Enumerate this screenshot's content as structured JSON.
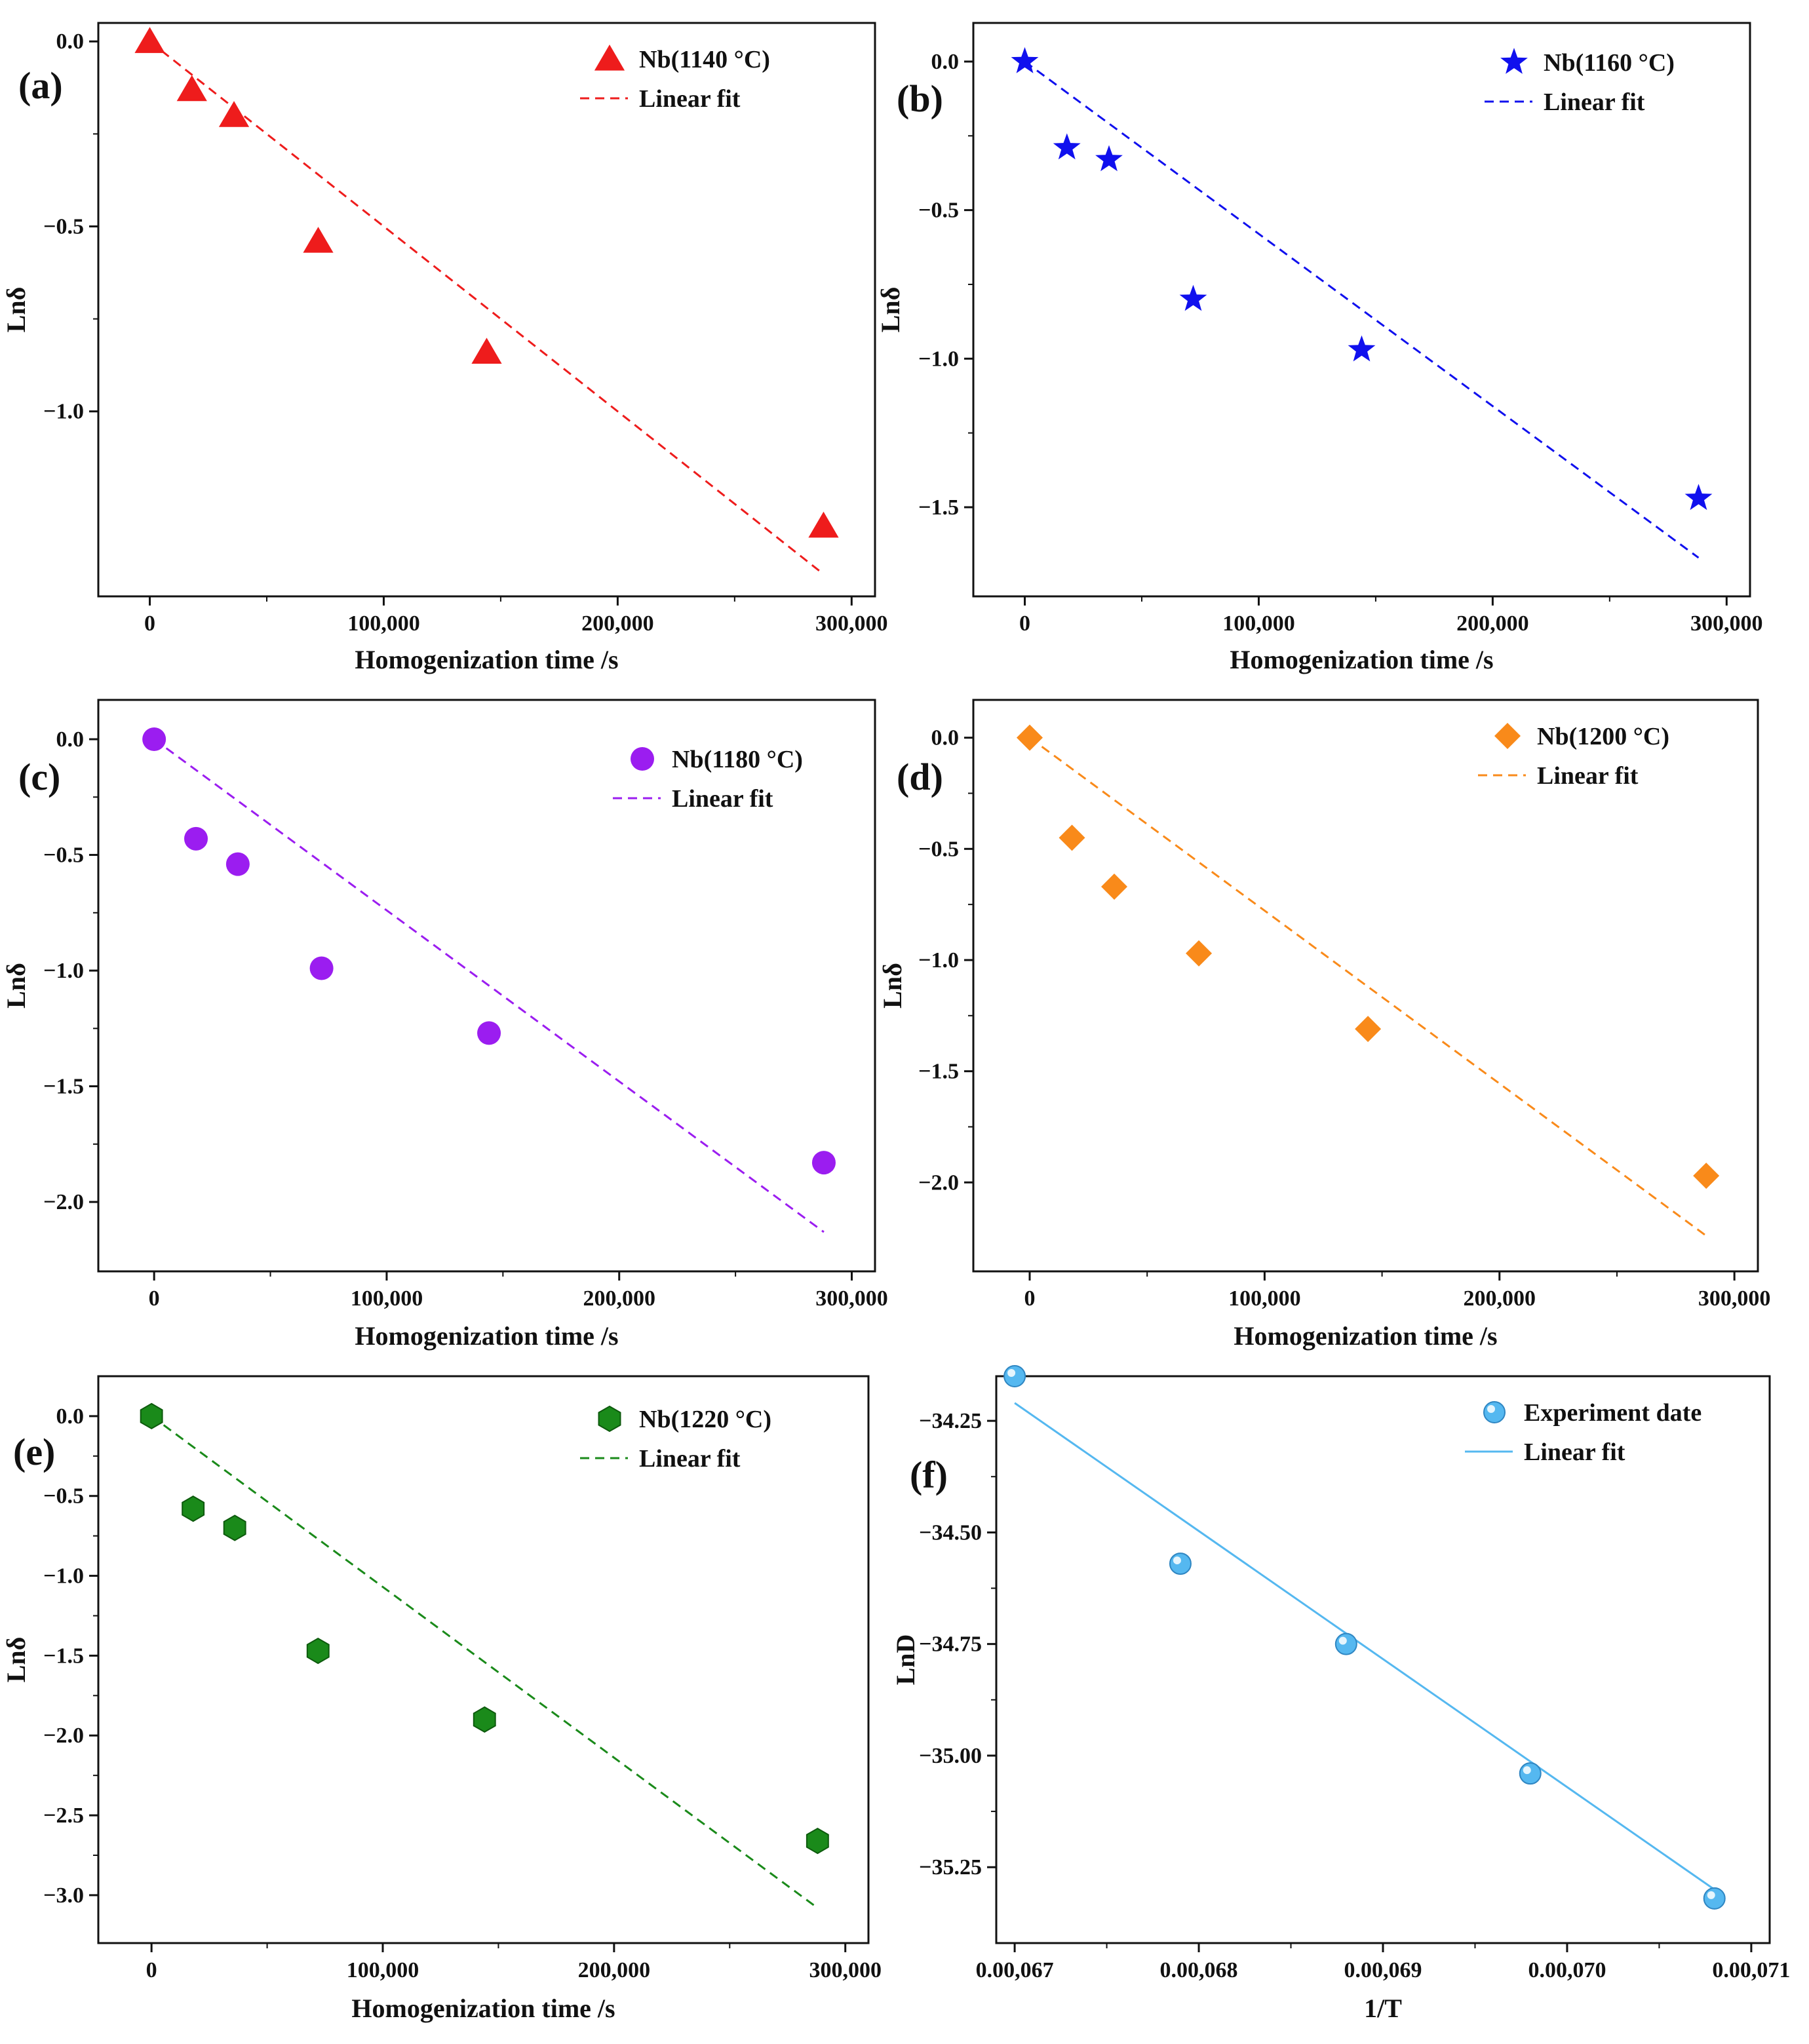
{
  "chart_data": [
    {
      "panel": "(a)",
      "type": "scatter",
      "marker": "triangle",
      "color": "#ee1c1c",
      "legend": [
        "Nb(1140 °C)",
        "Linear fit"
      ],
      "xlabel": "Homogenization time /s",
      "ylabel": "Lnδ",
      "xlim": [
        -22000,
        310000
      ],
      "ylim": [
        -1.5,
        0.05
      ],
      "xticks": [
        0,
        100000,
        200000,
        300000
      ],
      "xtick_labels": [
        "0",
        "100,000",
        "200,000",
        "300,000"
      ],
      "yticks": [
        0,
        -0.5,
        -1.0
      ],
      "ytick_labels": [
        "0.0",
        "-0.5",
        "-1.0"
      ],
      "points": [
        [
          0,
          0.0
        ],
        [
          18000,
          -0.13
        ],
        [
          36000,
          -0.2
        ],
        [
          72000,
          -0.54
        ],
        [
          144000,
          -0.84
        ],
        [
          288000,
          -1.31
        ]
      ],
      "fit": [
        [
          0,
          0.0
        ],
        [
          288000,
          -1.44
        ]
      ],
      "fit_style": "dashed"
    },
    {
      "panel": "(b)",
      "type": "scatter",
      "marker": "star",
      "color": "#1010ee",
      "legend": [
        "Nb(1160 °C)",
        "Linear fit"
      ],
      "xlabel": "Homogenization time /s",
      "ylabel": "Lnδ",
      "xlim": [
        -22000,
        310000
      ],
      "ylim": [
        -1.8,
        0.13
      ],
      "xticks": [
        0,
        100000,
        200000,
        300000
      ],
      "xtick_labels": [
        "0",
        "100,000",
        "200,000",
        "300,000"
      ],
      "yticks": [
        0,
        -0.5,
        -1.0,
        -1.5
      ],
      "ytick_labels": [
        "0.0",
        "-0.5",
        "-1.0",
        "-1.5"
      ],
      "points": [
        [
          0,
          0.0
        ],
        [
          18000,
          -0.29
        ],
        [
          36000,
          -0.33
        ],
        [
          72000,
          -0.8
        ],
        [
          144000,
          -0.97
        ],
        [
          288000,
          -1.47
        ]
      ],
      "fit": [
        [
          0,
          0.0
        ],
        [
          288000,
          -1.67
        ]
      ],
      "fit_style": "dashed"
    },
    {
      "panel": "(c)",
      "type": "scatter",
      "marker": "circle",
      "color": "#9b1df0",
      "legend": [
        "Nb(1180 °C)",
        "Linear fit"
      ],
      "xlabel": "Homogenization time /s",
      "ylabel": "Lnδ",
      "xlim": [
        -24000,
        310000
      ],
      "ylim": [
        -2.3,
        0.17
      ],
      "xticks": [
        0,
        100000,
        200000,
        300000
      ],
      "xtick_labels": [
        "0",
        "100,000",
        "200,000",
        "300,000"
      ],
      "yticks": [
        0,
        -0.5,
        -1.0,
        -1.5,
        -2.0
      ],
      "ytick_labels": [
        "0.0",
        "-0.5",
        "-1.0",
        "-1.5",
        "-2.0"
      ],
      "points": [
        [
          0,
          0.0
        ],
        [
          18000,
          -0.43
        ],
        [
          36000,
          -0.54
        ],
        [
          72000,
          -0.99
        ],
        [
          144000,
          -1.27
        ],
        [
          288000,
          -1.83
        ]
      ],
      "fit": [
        [
          0,
          0.0
        ],
        [
          288000,
          -2.13
        ]
      ],
      "fit_style": "dashed"
    },
    {
      "panel": "(d)",
      "type": "scatter",
      "marker": "diamond",
      "color": "#f98a1a",
      "legend": [
        "Nb(1200 °C)",
        "Linear fit"
      ],
      "xlabel": "Homogenization time /s",
      "ylabel": "Lnδ",
      "xlim": [
        -24000,
        310000
      ],
      "ylim": [
        -2.4,
        0.17
      ],
      "xticks": [
        0,
        100000,
        200000,
        300000
      ],
      "xtick_labels": [
        "0",
        "100,000",
        "200,000",
        "300,000"
      ],
      "yticks": [
        0,
        -0.5,
        -1.0,
        -1.5,
        -2.0
      ],
      "ytick_labels": [
        "0.0",
        "-0.5",
        "-1.0",
        "-1.5",
        "-2.0"
      ],
      "points": [
        [
          0,
          0.0
        ],
        [
          18000,
          -0.45
        ],
        [
          36000,
          -0.67
        ],
        [
          72000,
          -0.97
        ],
        [
          144000,
          -1.31
        ],
        [
          288000,
          -1.97
        ]
      ],
      "fit": [
        [
          0,
          0.0
        ],
        [
          288000,
          -2.24
        ]
      ],
      "fit_style": "dashed"
    },
    {
      "panel": "(e)",
      "type": "scatter",
      "marker": "hexagon",
      "color": "#1a8a1a",
      "legend": [
        "Nb(1220 °C)",
        "Linear fit"
      ],
      "xlabel": "Homogenization time /s",
      "ylabel": "Lnδ",
      "xlim": [
        -23000,
        310000
      ],
      "ylim": [
        -3.3,
        0.25
      ],
      "xticks": [
        0,
        100000,
        200000,
        300000
      ],
      "xtick_labels": [
        "0",
        "100,000",
        "200,000",
        "300,000"
      ],
      "yticks": [
        0,
        -0.5,
        -1.0,
        -1.5,
        -2.0,
        -2.5,
        -3.0
      ],
      "ytick_labels": [
        "0.0",
        "-0.5",
        "-1.0",
        "-1.5",
        "-2.0",
        "-2.5",
        "-3.0"
      ],
      "points": [
        [
          0,
          0.0
        ],
        [
          18000,
          -0.58
        ],
        [
          36000,
          -0.7
        ],
        [
          72000,
          -1.47
        ],
        [
          144000,
          -1.9
        ],
        [
          288000,
          -2.66
        ]
      ],
      "fit": [
        [
          0,
          0.0
        ],
        [
          288000,
          -3.08
        ]
      ],
      "fit_style": "dashed"
    },
    {
      "panel": "(f)",
      "type": "scatter",
      "marker": "sphere",
      "color": "#55b8f0",
      "legend": [
        "Experiment date",
        "Linear fit"
      ],
      "xlabel": "1/T",
      "ylabel": "LnD",
      "xlim": [
        0.000669,
        0.000711
      ],
      "ylim": [
        -35.42,
        -34.15
      ],
      "xticks": [
        0.00067,
        0.00068,
        0.00069,
        0.0007,
        0.00071
      ],
      "xtick_labels": [
        "0.00,067",
        "0.00,068",
        "0.00,069",
        "0.00,070",
        "0.00,071"
      ],
      "yticks": [
        -34.25,
        -34.5,
        -34.75,
        -35.0,
        -35.25
      ],
      "ytick_labels": [
        "-34.25",
        "-34.50",
        "-34.75",
        "-35.00",
        "-35.25"
      ],
      "points": [
        [
          0.00067,
          -34.15
        ],
        [
          0.000679,
          -34.57
        ],
        [
          0.000688,
          -34.75
        ],
        [
          0.000698,
          -35.04
        ],
        [
          0.000708,
          -35.32
        ]
      ],
      "fit": [
        [
          0.00067,
          -34.21
        ],
        [
          0.000708,
          -35.3
        ]
      ],
      "fit_style": "solid"
    }
  ]
}
